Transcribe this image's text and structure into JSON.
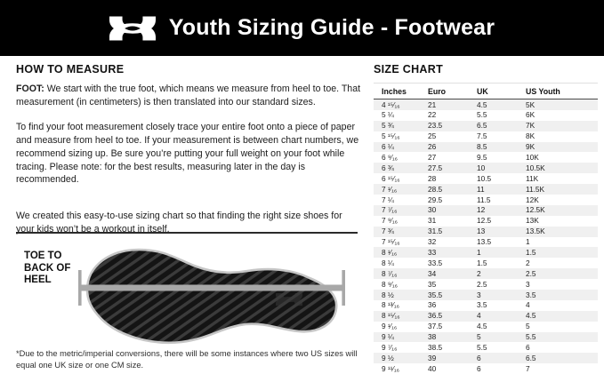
{
  "header": {
    "title": "Youth Sizing Guide - Footwear",
    "logo_name": "under-armour-logo",
    "background": "#000000",
    "text_color": "#ffffff"
  },
  "how_to_measure": {
    "heading": "HOW TO MEASURE",
    "foot_label": "FOOT:",
    "p1": " We start with the true foot, which means we measure from heel to toe. That measurement (in centimeters) is then translated into our standard sizes.",
    "p2": "To find your foot measurement closely trace your entire foot onto a piece of paper and measure from heel to toe. If your measurement is between chart numbers, we recommend sizing up. Be sure you’re putting your full weight on your foot while tracing. Please note: for the best results, measuring later in the day is recommended.",
    "p3": "We created this easy-to-use sizing chart so that finding the right size shoes for your kids won’t be a workout in itself."
  },
  "figure": {
    "label_lines": [
      "TOE TO",
      "BACK OF",
      "HEEL"
    ],
    "icon": "shoe-outsole-with-measurement-line",
    "line_color": "#a8a8a8"
  },
  "footnote": "*Due to the metric/imperial conversions, there will be some instances where two US sizes will equal one UK size or one CM size.",
  "size_chart": {
    "heading": "SIZE CHART",
    "columns": [
      "Inches",
      "Euro",
      "UK",
      "US Youth"
    ],
    "stripe_color": "#f0f0f0",
    "rows": [
      [
        "4 ¹⁵⁄₁₆",
        "21",
        "4.5",
        "5K"
      ],
      [
        "5 ¼",
        "22",
        "5.5",
        "6K"
      ],
      [
        "5 ¾",
        "23.5",
        "6.5",
        "7K"
      ],
      [
        "5 ¹⁵⁄₁₆",
        "25",
        "7.5",
        "8K"
      ],
      [
        "6 ¼",
        "26",
        "8.5",
        "9K"
      ],
      [
        "6 ⁹⁄₁₆",
        "27",
        "9.5",
        "10K"
      ],
      [
        "6 ¾",
        "27.5",
        "10",
        "10.5K"
      ],
      [
        "6 ¹⁵⁄₁₆",
        "28",
        "10.5",
        "11K"
      ],
      [
        "7 ¹⁄₁₆",
        "28.5",
        "11",
        "11.5K"
      ],
      [
        "7 ¼",
        "29.5",
        "11.5",
        "12K"
      ],
      [
        "7 ⁷⁄₁₆",
        "30",
        "12",
        "12.5K"
      ],
      [
        "7 ⁹⁄₁₆",
        "31",
        "12.5",
        "13K"
      ],
      [
        "7 ¾",
        "31.5",
        "13",
        "13.5K"
      ],
      [
        "7 ¹⁵⁄₁₆",
        "32",
        "13.5",
        "1"
      ],
      [
        "8 ¹⁄₁₆",
        "33",
        "1",
        "1.5"
      ],
      [
        "8 ¼",
        "33.5",
        "1.5",
        "2"
      ],
      [
        "8 ⁷⁄₁₆",
        "34",
        "2",
        "2.5"
      ],
      [
        "8 ⁹⁄₁₆",
        "35",
        "2.5",
        "3"
      ],
      [
        "8 ½",
        "35.5",
        "3",
        "3.5"
      ],
      [
        "8 ¹³⁄₁₆",
        "36",
        "3.5",
        "4"
      ],
      [
        "8 ¹⁵⁄₁₆",
        "36.5",
        "4",
        "4.5"
      ],
      [
        "9 ¹⁄₁₆",
        "37.5",
        "4.5",
        "5"
      ],
      [
        "9 ¼",
        "38",
        "5",
        "5.5"
      ],
      [
        "9 ⁷⁄₁₆",
        "38.5",
        "5.5",
        "6"
      ],
      [
        "9 ½",
        "39",
        "6",
        "6.5"
      ],
      [
        "9 ¹¹⁄₁₆",
        "40",
        "6",
        "7"
      ]
    ]
  }
}
